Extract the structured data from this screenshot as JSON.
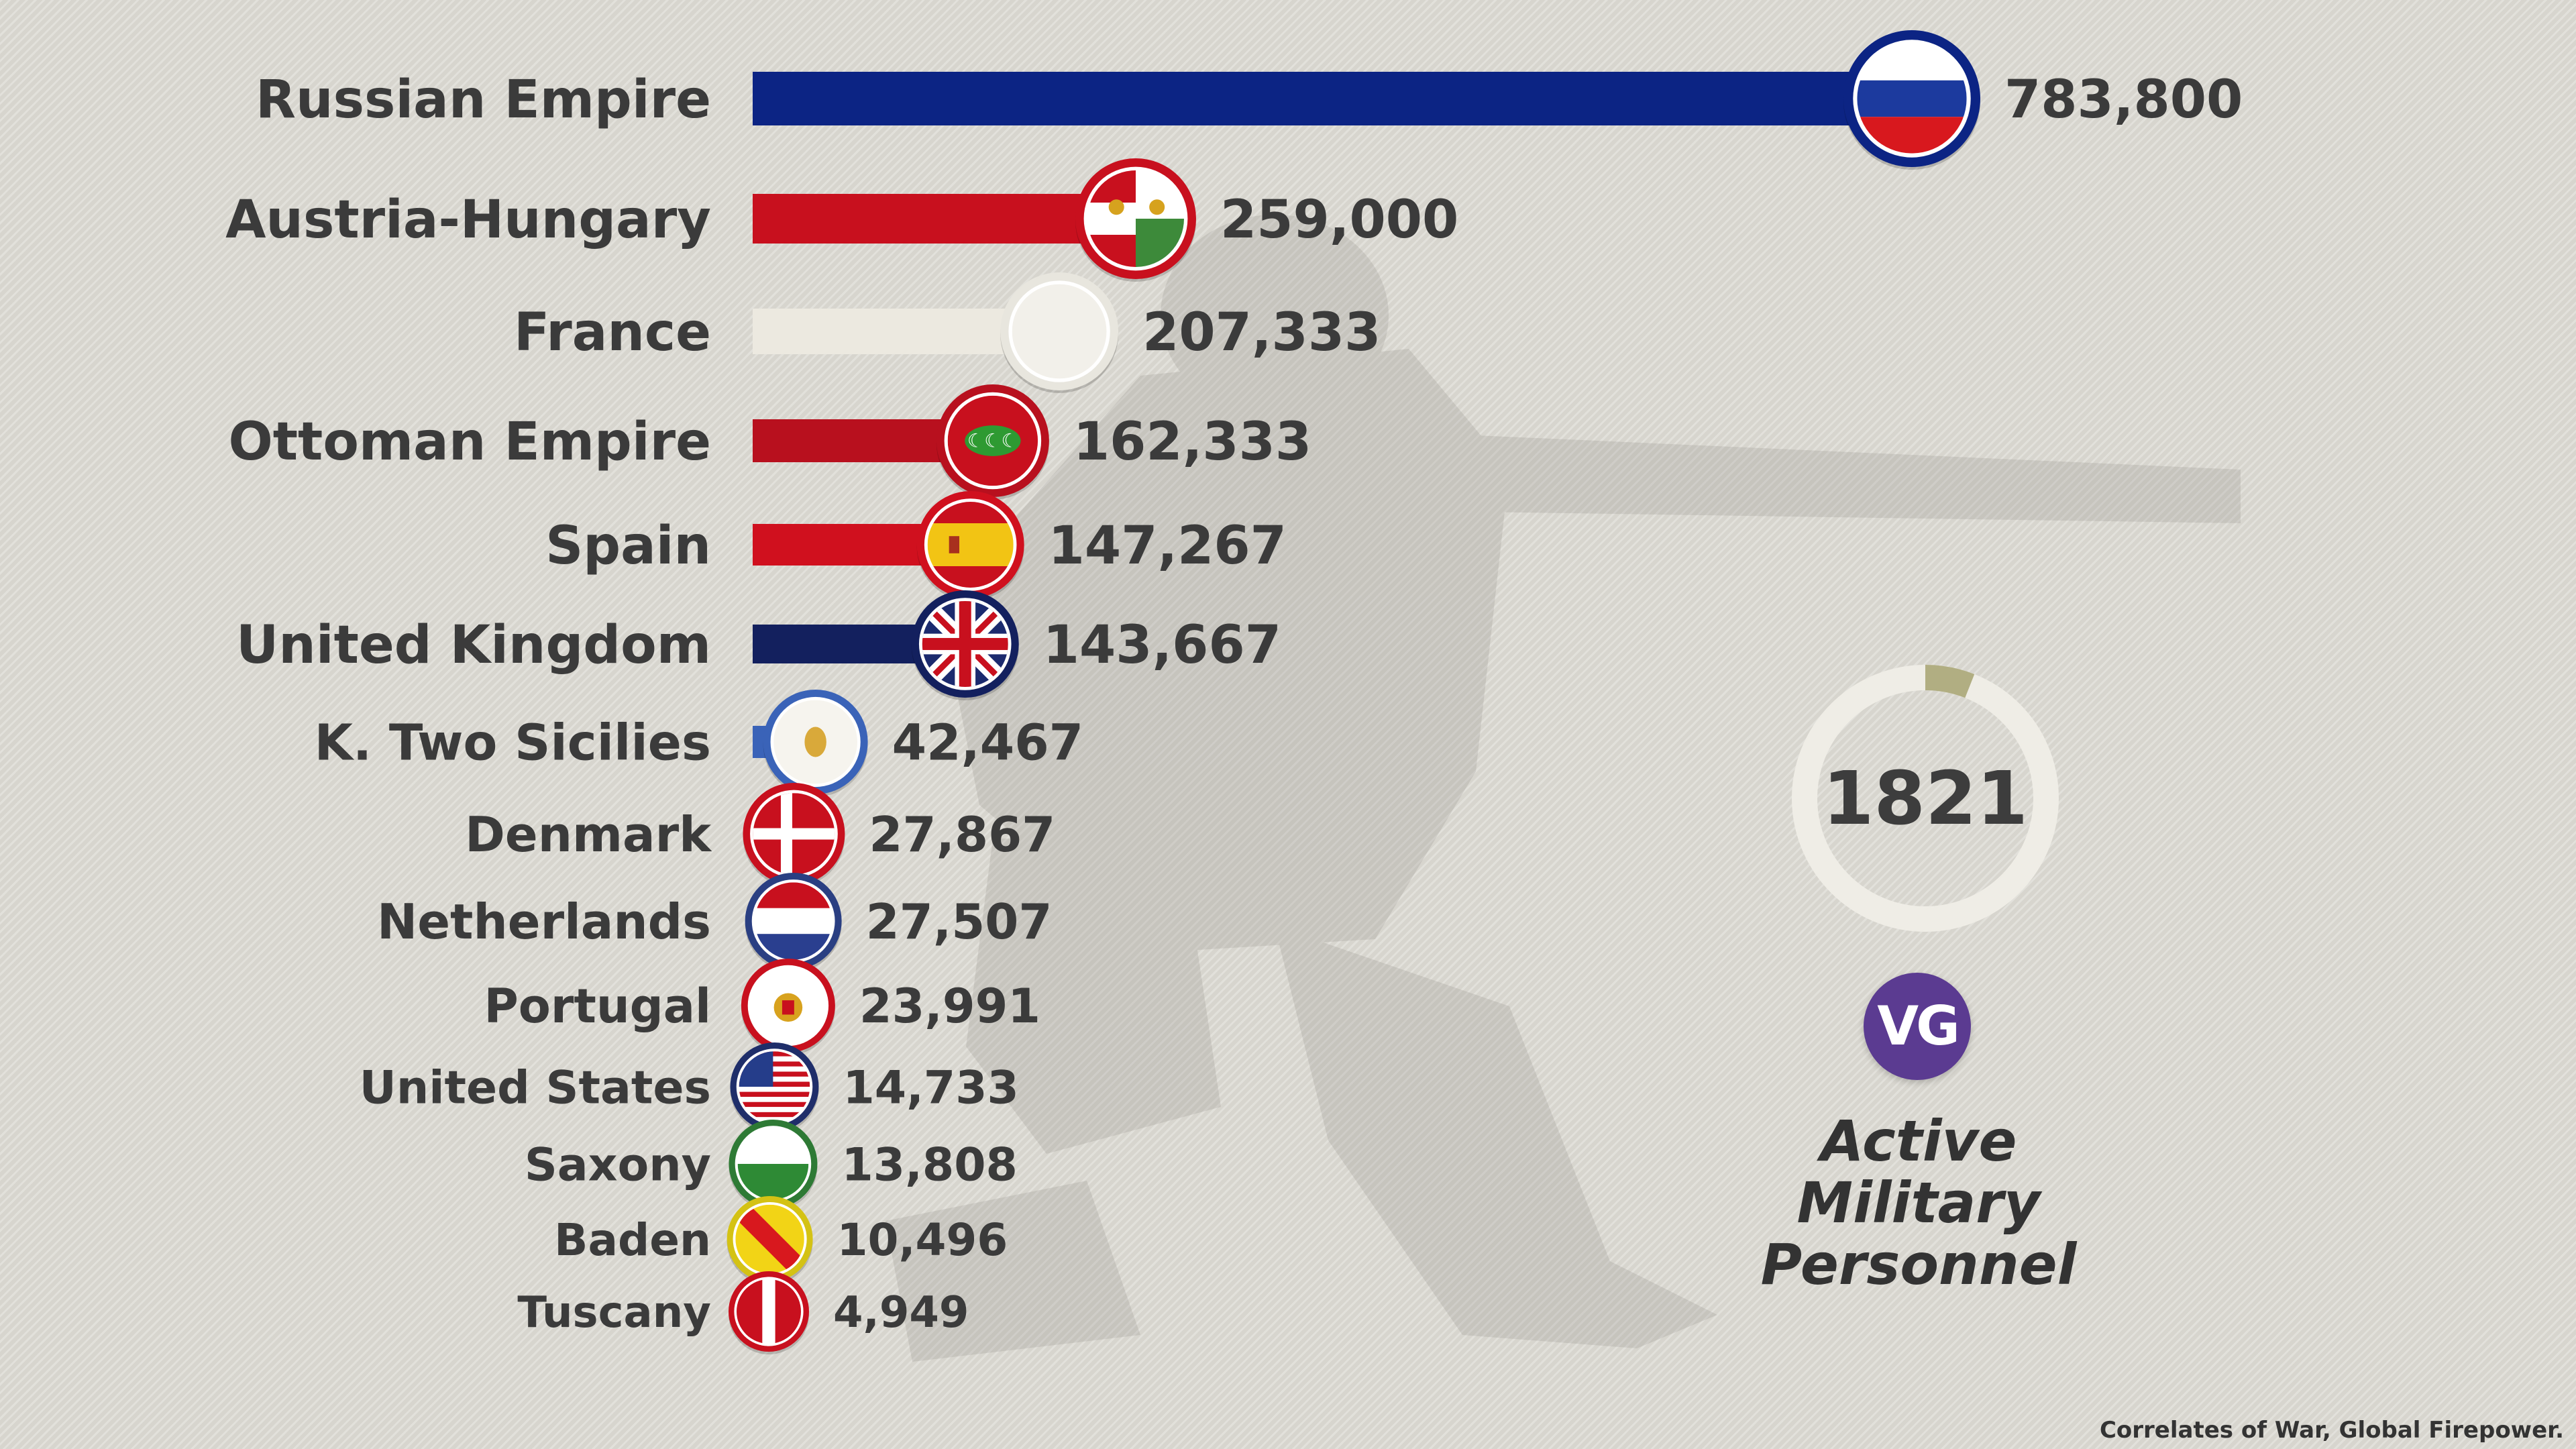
{
  "chart_data": {
    "type": "bar",
    "orientation": "horizontal",
    "categories": [
      "Russian Empire",
      "Austria-Hungary",
      "France",
      "Ottoman Empire",
      "Spain",
      "United Kingdom",
      "K. Two Sicilies",
      "Denmark",
      "Netherlands",
      "Portugal",
      "United States",
      "Saxony",
      "Baden",
      "Tuscany"
    ],
    "values": [
      783800,
      259000,
      207333,
      162333,
      147267,
      143667,
      42467,
      27867,
      27507,
      23991,
      14733,
      13808,
      10496,
      4949
    ],
    "value_labels": [
      "783,800",
      "259,000",
      "207,333",
      "162,333",
      "147,267",
      "143,667",
      "42,467",
      "27,867",
      "27,507",
      "23,991",
      "14,733",
      "13,808",
      "10,496",
      "4,949"
    ],
    "colors": [
      "#0c2484",
      "#c8101e",
      "#ece9e0",
      "#b8101e",
      "#d0101e",
      "#13205e",
      "#3a63b8",
      "#c8101e",
      "#2a3f82",
      "#c8101e",
      "#1f2e6a",
      "#2e7a35",
      "#d4c214",
      "#c8101e"
    ],
    "flag_icons": [
      "flag-russia-icon",
      "flag-austria-hungary-icon",
      "flag-france-icon",
      "flag-ottoman-icon",
      "flag-spain-icon",
      "flag-united-kingdom-icon",
      "flag-two-sicilies-icon",
      "flag-denmark-icon",
      "flag-netherlands-icon",
      "flag-portugal-icon",
      "flag-united-states-icon",
      "flag-saxony-icon",
      "flag-baden-icon",
      "flag-tuscany-icon"
    ],
    "title": "Active Military Personnel"
  },
  "year": "1821",
  "year_progress": 0.06,
  "logo_text": "VG",
  "metric_title_lines": [
    "Active",
    "Military",
    "Personnel"
  ],
  "source": "Correlates of War, Global Firepower."
}
